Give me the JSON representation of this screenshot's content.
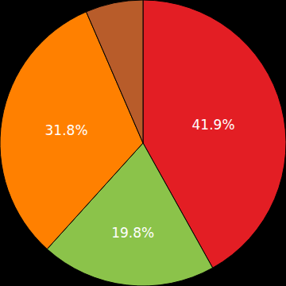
{
  "chart_data": {
    "type": "pie",
    "values": [
      41.9,
      19.8,
      31.8,
      6.5
    ],
    "value_labels": [
      "41.9%",
      "19.8%",
      "31.8%",
      null
    ],
    "colors": [
      "#e31e24",
      "#8bc34a",
      "#ff8000",
      "#b85c2a"
    ],
    "data_labels": true
  }
}
